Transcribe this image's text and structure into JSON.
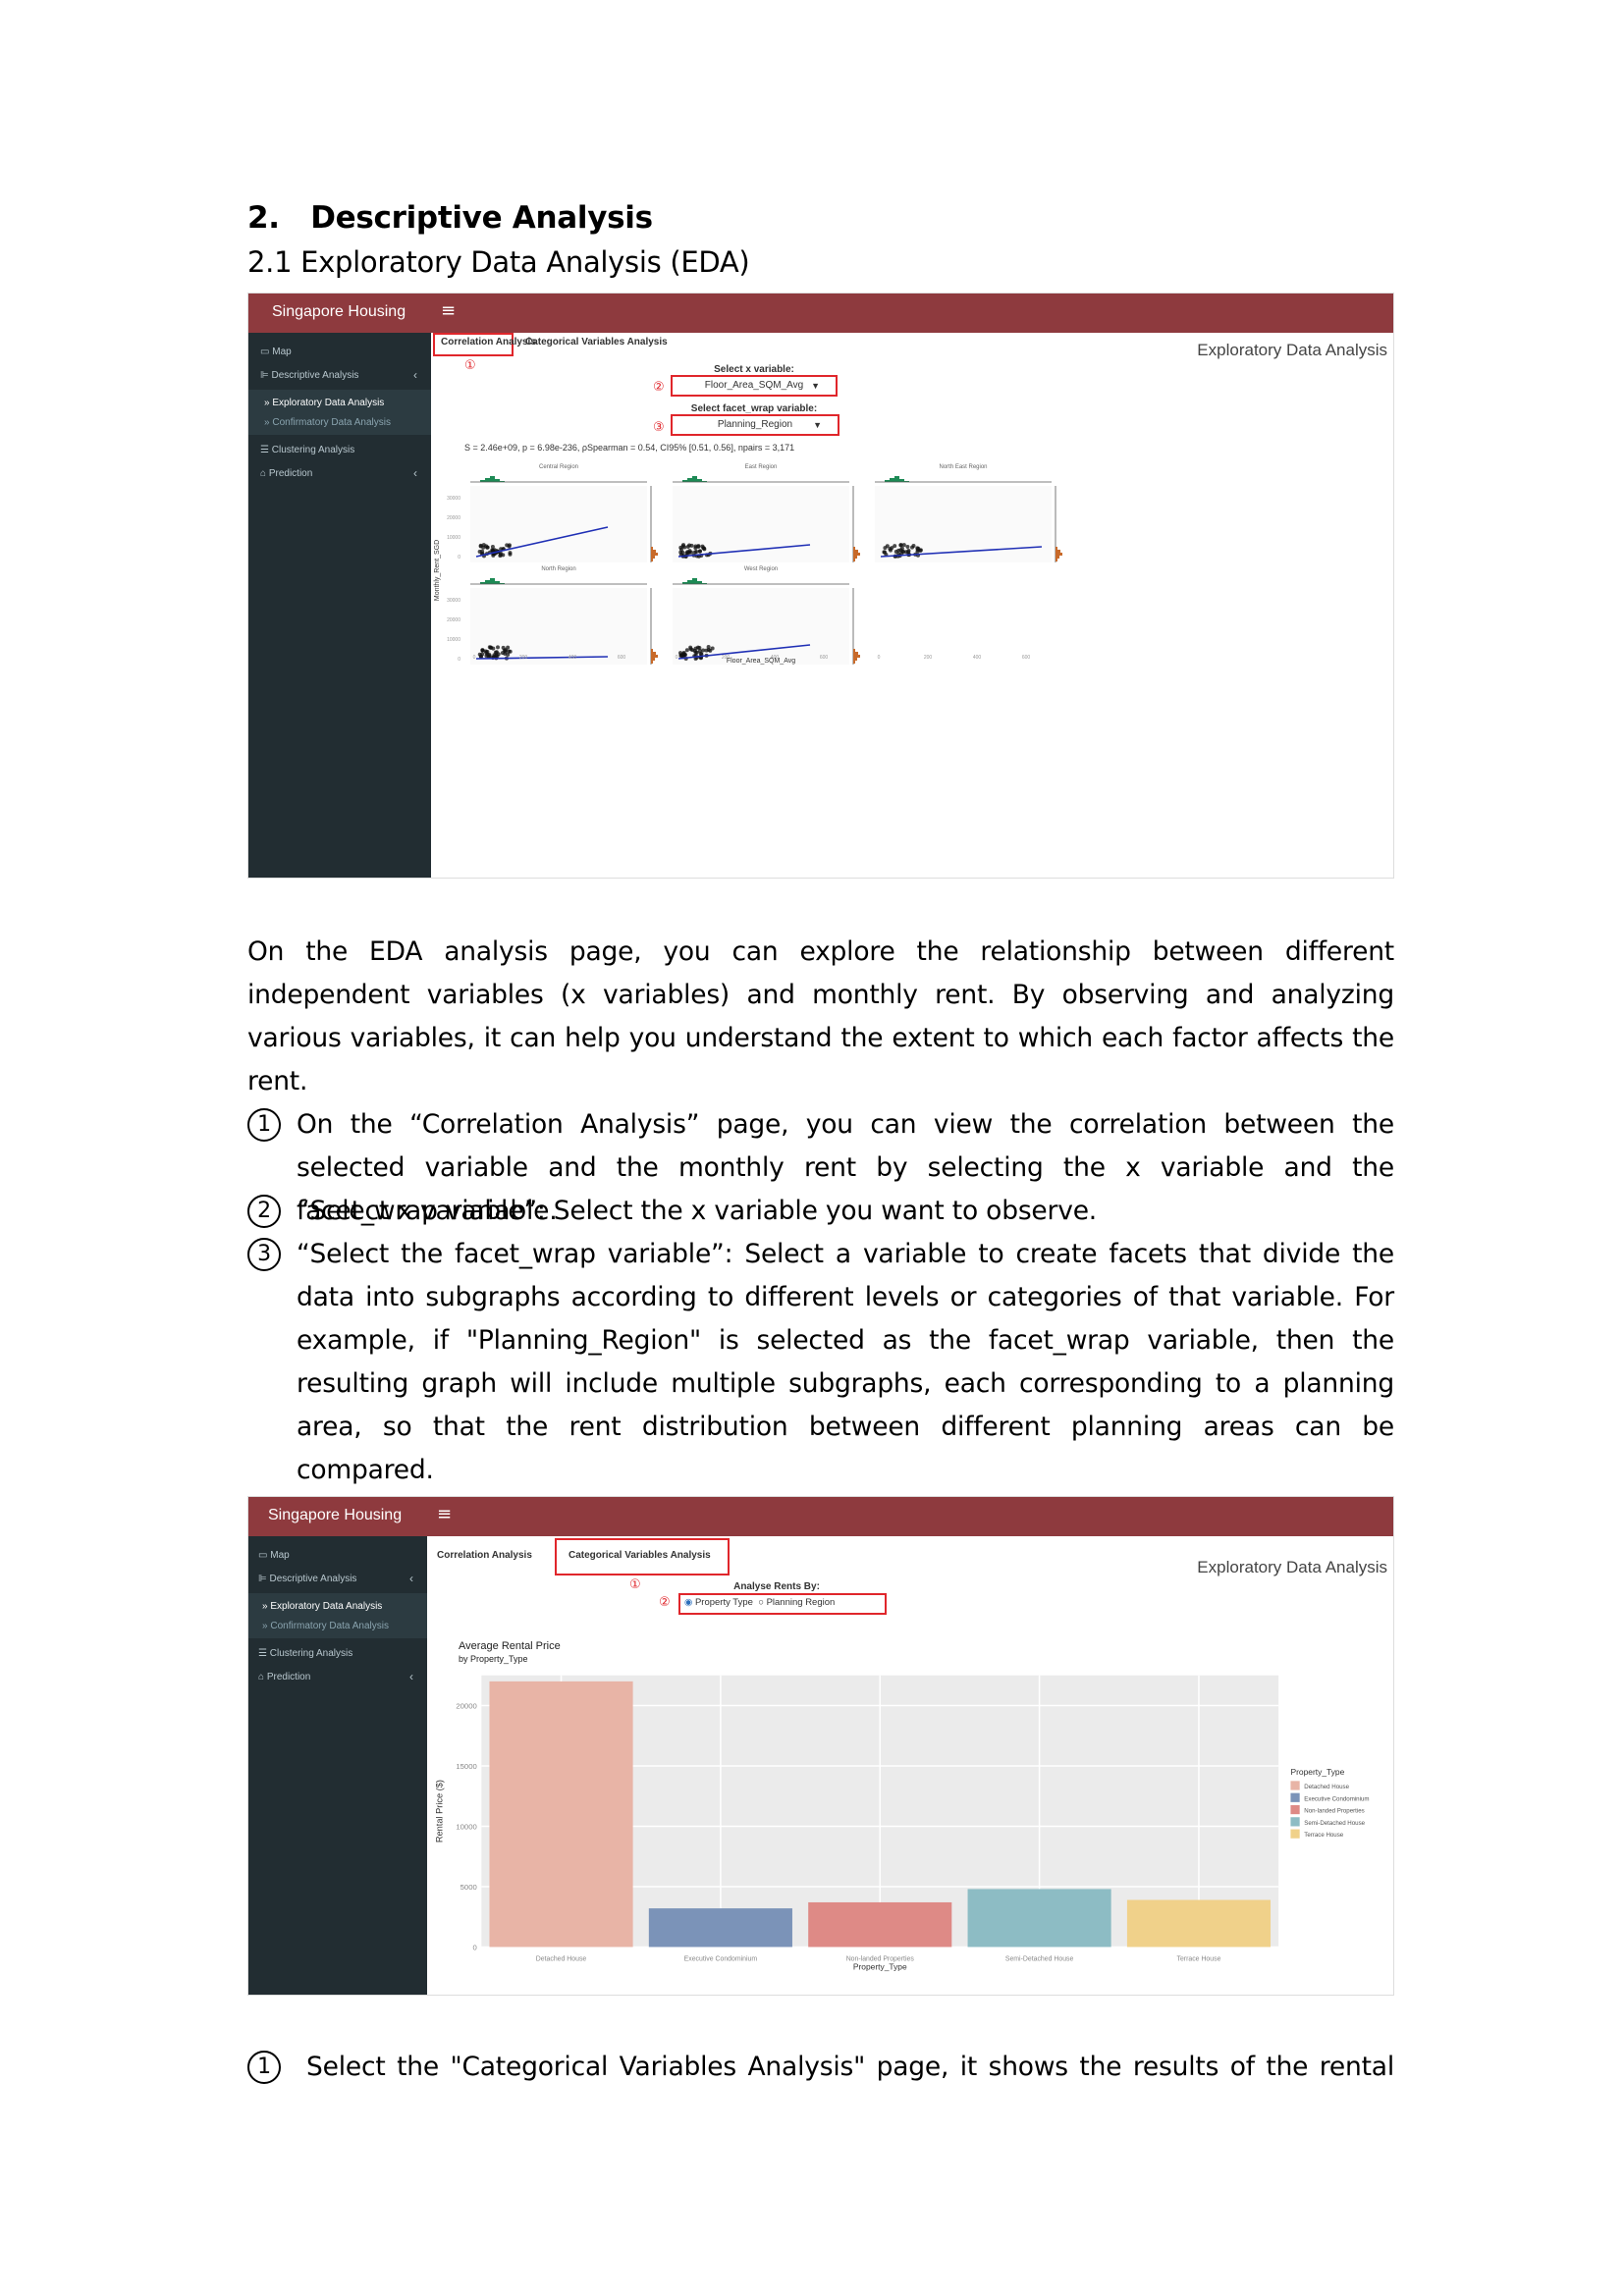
{
  "heading": {
    "number": "2.",
    "title": "Descriptive Analysis",
    "sub_number": "2.1",
    "sub_title": "Exploratory Data Analysis (EDA)"
  },
  "app": {
    "brand": "Singapore Housing",
    "menu_icon": "≡",
    "sidebar": {
      "map": "Map",
      "descriptive": "Descriptive Analysis",
      "eda": "Exploratory Data Analysis",
      "confirmatory": "Confirmatory Data Analysis",
      "clustering": "Clustering Analysis",
      "prediction": "Prediction"
    },
    "tabs": {
      "correlation": "Correlation Analysis",
      "categorical": "Categorical Variables Analysis"
    },
    "page_title": "Exploratory Data Analysis",
    "markers": {
      "one": "①",
      "two": "②",
      "three": "③"
    }
  },
  "screen1": {
    "x_label": "Select x variable:",
    "x_value": "Floor_Area_SQM_Avg",
    "facet_label": "Select facet_wrap variable:",
    "facet_value": "Planning_Region",
    "stat_line": "S = 2.46e+09, p = 6.98e-236, ρSpearman = 0.54, CI95% [0.51, 0.56], npairs = 3,171",
    "y_axis_label": "Monthly_Rent_SGD",
    "x_axis_label": "Floor_Area_SQM_Avg",
    "facets": [
      "Central Region",
      "East Region",
      "North East Region",
      "North Region",
      "West Region"
    ],
    "y_ticks": [
      "0",
      "10000",
      "20000",
      "30000"
    ],
    "x_ticks": [
      "0",
      "200",
      "400",
      "600"
    ]
  },
  "paragraph_intro": "On the EDA analysis page, you can explore the relationship between different independent variables (x variables) and monthly rent. By observing and analyzing various variables, it can help you understand the extent to which each factor affects the rent.",
  "items": [
    {
      "num": "1",
      "text": "On the “Correlation Analysis” page, you can view the correlation between the selected variable and the monthly rent by selecting the x variable and the facet_wrap variable."
    },
    {
      "num": "2",
      "text": " “Select x variable”: Select the x variable you want to observe."
    },
    {
      "num": "3",
      "text": "“Select the facet_wrap variable”: Select a variable to create facets that divide the data into subgraphs according to different levels or categories of that variable. For example, if \"Planning_Region\" is selected as the facet_wrap variable, then the resulting graph will include multiple subgraphs, each corresponding to a planning area, so that the rent distribution between different planning areas can be compared."
    }
  ],
  "screen2": {
    "analyse_label": "Analyse Rents By:",
    "radio_property": "Property Type",
    "radio_region": "Planning Region"
  },
  "chart_data": {
    "type": "bar",
    "title": "Average Rental Price",
    "subtitle": "by Property_Type",
    "xlabel": "Property_Type",
    "ylabel": "Rental Price ($)",
    "ylim": [
      0,
      22500
    ],
    "y_ticks": [
      0,
      5000,
      10000,
      15000,
      20000
    ],
    "y_tick_labels": [
      "0",
      "5000",
      "10000",
      "15000",
      "20000"
    ],
    "categories": [
      "Detached House",
      "Executive Condominium",
      "Non-landed Properties",
      "Semi-Detached House",
      "Terrace House"
    ],
    "values": [
      22000,
      3200,
      3700,
      4800,
      3900
    ],
    "colors": [
      "#e8b4a6",
      "#7b93b8",
      "#de8a86",
      "#8dbcc4",
      "#f0d18a"
    ],
    "legend_title": "Property_Type",
    "legend_position": "right",
    "grid": true
  },
  "item_last": {
    "num": "1",
    "text": "Select the \"Categorical Variables Analysis\" page, it shows the results of the rental"
  }
}
